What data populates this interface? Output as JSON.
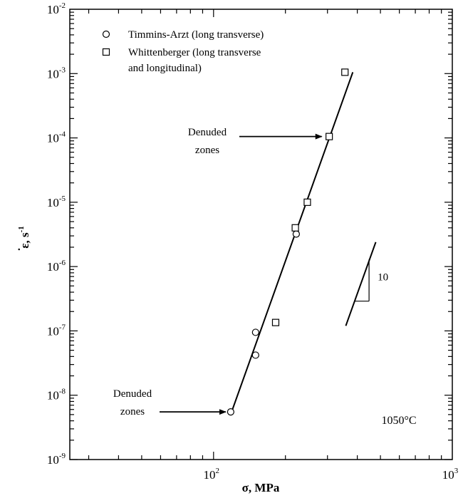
{
  "chart_data": {
    "type": "scatter",
    "x_scale": "log",
    "y_scale": "log",
    "xlim": [
      25,
      1000
    ],
    "ylim": [
      1e-09,
      0.01
    ],
    "x_ticks": [
      {
        "value": 100,
        "base": "10",
        "exp": "2"
      },
      {
        "value": 1000,
        "base": "10",
        "exp": "3"
      }
    ],
    "y_ticks": [
      {
        "value": 1e-09,
        "base": "10",
        "exp": "-9"
      },
      {
        "value": 1e-08,
        "base": "10",
        "exp": "-8"
      },
      {
        "value": 1e-07,
        "base": "10",
        "exp": "-7"
      },
      {
        "value": 1e-06,
        "base": "10",
        "exp": "-6"
      },
      {
        "value": 1e-05,
        "base": "10",
        "exp": "-5"
      },
      {
        "value": 0.0001,
        "base": "10",
        "exp": "-4"
      },
      {
        "value": 0.001,
        "base": "10",
        "exp": "-3"
      },
      {
        "value": 0.01,
        "base": "10",
        "exp": "-2"
      }
    ],
    "xlabel": "σ, MPa",
    "ylabel": {
      "main": "ε, s",
      "exp": "-1",
      "dot": "˙"
    },
    "series": [
      {
        "name": "Timmins-Arzt (long transverse)",
        "marker": "circle",
        "points": [
          [
            118,
            5.5e-09
          ],
          [
            150,
            4.2e-08
          ],
          [
            150,
            9.5e-08
          ],
          [
            222,
            3.2e-06
          ]
        ]
      },
      {
        "name": "Whittenberger (long transverse and longitudinal)",
        "name_lines": [
          "Whittenberger (long transverse",
          "and longitudinal)"
        ],
        "marker": "square",
        "points": [
          [
            182,
            1.35e-07
          ],
          [
            220,
            4e-06
          ],
          [
            247,
            1e-05
          ],
          [
            305,
            0.000105
          ],
          [
            355,
            0.00105
          ]
        ]
      }
    ],
    "fit_line": {
      "from": [
        120,
        6e-09
      ],
      "to": [
        383,
        0.00105
      ]
    },
    "slope_triangle": {
      "label": "10",
      "line_from": [
        358,
        1.2e-07
      ],
      "line_to": [
        478,
        2.4e-06
      ],
      "corner_x": 448,
      "corner_y": 2.9e-07,
      "top_y": 1.3e-06
    },
    "annotations": [
      {
        "lines": [
          "Denuded",
          "zones"
        ],
        "points_to": [
          300,
          0.000105
        ]
      },
      {
        "lines": [
          "Denuded",
          "zones"
        ],
        "points_to": [
          118,
          5.5e-09
        ]
      }
    ],
    "temperature_label": "1050°C",
    "legend_position": "top-left",
    "grid": false
  }
}
